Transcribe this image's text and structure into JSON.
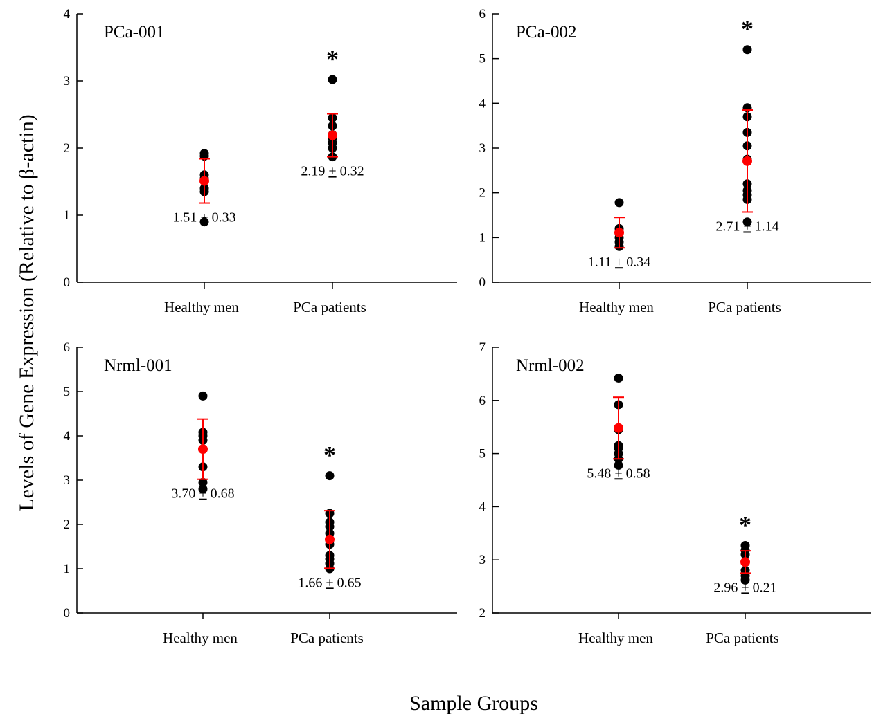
{
  "figure": {
    "ylabel": "Levels of Gene Expression (Relative to β-actin)",
    "xlabel": "Sample Groups"
  },
  "colors": {
    "points": "#000000",
    "mean": "#ff0000",
    "errorbar": "#ff0000",
    "axis": "#000000"
  },
  "chart_data": [
    {
      "type": "scatter",
      "title": "PCa-001",
      "categories": [
        "Healthy men",
        "PCa patients"
      ],
      "ylim": [
        0,
        4
      ],
      "yticks": [
        0,
        1,
        2,
        3,
        4
      ],
      "points": [
        [
          0.9,
          1.35,
          1.4,
          1.55,
          1.6,
          1.88,
          1.92
        ],
        [
          1.87,
          2.0,
          2.08,
          2.15,
          2.2,
          2.33,
          2.45,
          3.02
        ]
      ],
      "means": [
        1.51,
        2.19
      ],
      "sd": [
        0.33,
        0.32
      ],
      "annotations": [
        "1.51 ± 0.33",
        "2.19 ± 0.32"
      ],
      "annotation_mean": [
        "1.51",
        "2.19"
      ],
      "annotation_sd": [
        "0.33",
        "0.32"
      ],
      "annotation_pm": "+",
      "significance": [
        false,
        true
      ],
      "significance_marker": "*"
    },
    {
      "type": "scatter",
      "title": "PCa-002",
      "categories": [
        "Healthy men",
        "PCa patients"
      ],
      "ylim": [
        0,
        6
      ],
      "yticks": [
        0,
        1,
        2,
        3,
        4,
        5,
        6
      ],
      "points": [
        [
          0.8,
          0.9,
          1.0,
          1.1,
          1.2,
          1.78
        ],
        [
          1.35,
          1.85,
          1.95,
          2.05,
          2.2,
          2.75,
          3.05,
          3.35,
          3.7,
          3.9,
          5.2
        ]
      ],
      "means": [
        1.11,
        2.71
      ],
      "sd": [
        0.34,
        1.14
      ],
      "annotations": [
        "1.11 ± 0.34",
        "2.71 ± 1.14"
      ],
      "annotation_mean": [
        "1.11",
        "2.71"
      ],
      "annotation_sd": [
        "0.34",
        "1.14"
      ],
      "annotation_pm": "+",
      "significance": [
        false,
        true
      ],
      "significance_marker": "*"
    },
    {
      "type": "scatter",
      "title": "Nrml-001",
      "categories": [
        "Healthy men",
        "PCa patients"
      ],
      "ylim": [
        0,
        6
      ],
      "yticks": [
        0,
        1,
        2,
        3,
        4,
        5,
        6
      ],
      "points": [
        [
          2.8,
          2.95,
          3.3,
          3.7,
          3.9,
          4.0,
          4.08,
          4.9
        ],
        [
          1.0,
          1.12,
          1.22,
          1.3,
          1.55,
          1.65,
          1.8,
          1.95,
          2.05,
          2.25,
          3.1
        ]
      ],
      "means": [
        3.7,
        1.66
      ],
      "sd": [
        0.68,
        0.65
      ],
      "annotations": [
        "3.70 ± 0.68",
        "1.66 ± 0.65"
      ],
      "annotation_mean": [
        "3.70",
        "1.66"
      ],
      "annotation_sd": [
        "0.68",
        "0.65"
      ],
      "annotation_pm": "+",
      "significance": [
        false,
        true
      ],
      "significance_marker": "*"
    },
    {
      "type": "scatter",
      "title": "Nrml-002",
      "categories": [
        "Healthy men",
        "PCa patients"
      ],
      "ylim": [
        2,
        7
      ],
      "yticks": [
        2,
        3,
        4,
        5,
        6,
        7
      ],
      "points": [
        [
          4.78,
          4.9,
          5.0,
          5.1,
          5.15,
          5.45,
          5.92,
          6.42
        ],
        [
          2.62,
          2.7,
          2.8,
          2.95,
          3.1,
          3.18,
          3.27
        ]
      ],
      "means": [
        5.48,
        2.96
      ],
      "sd": [
        0.58,
        0.21
      ],
      "annotations": [
        "5.48 ± 0.58",
        "2.96 ± 0.21"
      ],
      "annotation_mean": [
        "5.48",
        "2.96"
      ],
      "annotation_sd": [
        "0.58",
        "0.21"
      ],
      "annotation_pm": "+",
      "significance": [
        false,
        true
      ],
      "significance_marker": "*"
    }
  ]
}
